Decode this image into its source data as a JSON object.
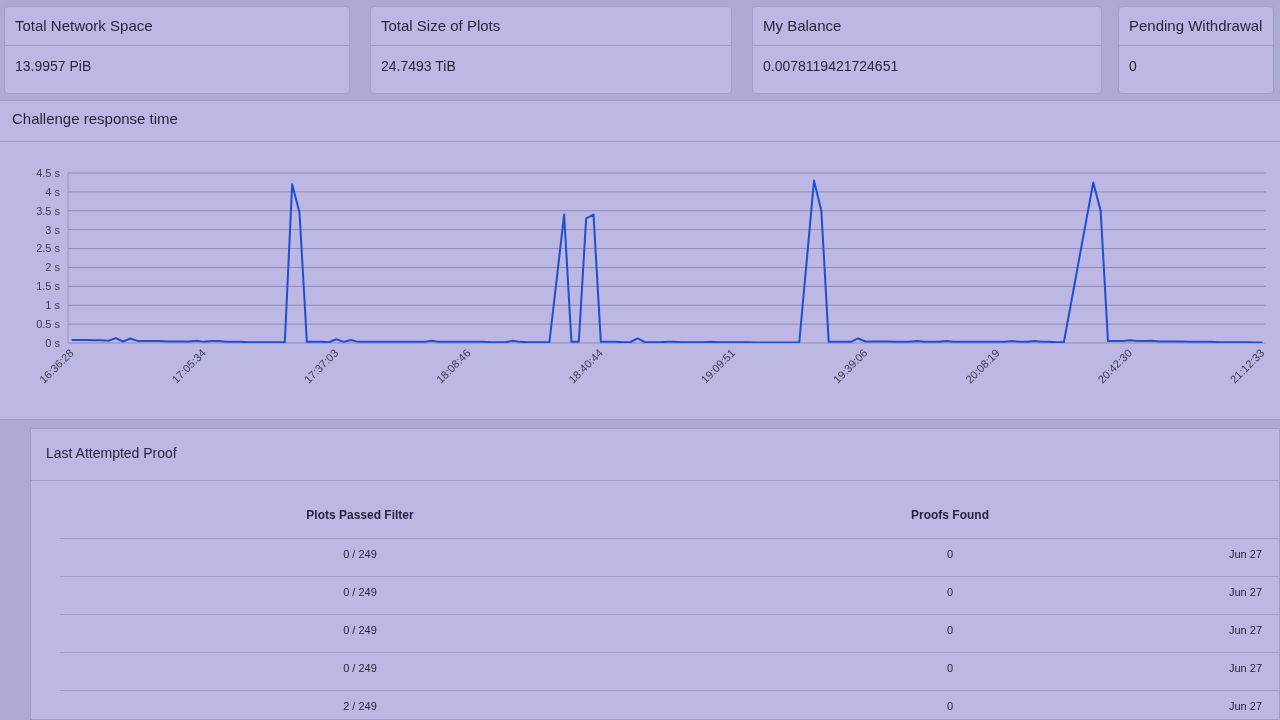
{
  "chart_data": [
    {
      "type": "other",
      "title": "Total Network Space",
      "annotations": [
        "13.9957 PiB"
      ]
    },
    {
      "type": "other",
      "title": "Total Size of Plots",
      "annotations": [
        "24.7493 TiB"
      ]
    },
    {
      "type": "other",
      "title": "My Balance",
      "annotations": [
        "0.0078119421724651"
      ]
    },
    {
      "type": "other",
      "title": "Pending Withdrawal",
      "annotations": [
        "0"
      ]
    },
    {
      "type": "line",
      "title": "Challenge response time",
      "color": "#1f4fd1",
      "grid": "y",
      "marker": "none",
      "categories": [
        "16:36:28",
        null,
        null,
        null,
        null,
        null,
        null,
        null,
        null,
        null,
        null,
        null,
        null,
        null,
        null,
        null,
        null,
        null,
        "17:05:34",
        null,
        null,
        null,
        null,
        null,
        null,
        null,
        null,
        null,
        null,
        null,
        null,
        null,
        null,
        null,
        null,
        null,
        "17:37:03",
        null,
        null,
        null,
        null,
        null,
        null,
        null,
        null,
        null,
        null,
        null,
        null,
        null,
        null,
        null,
        null,
        null,
        "18:08:46",
        null,
        null,
        null,
        null,
        null,
        null,
        null,
        null,
        null,
        null,
        null,
        null,
        null,
        null,
        null,
        null,
        null,
        "18:40:44",
        null,
        null,
        null,
        null,
        null,
        null,
        null,
        null,
        null,
        null,
        null,
        null,
        null,
        null,
        null,
        null,
        null,
        "19:09:51",
        null,
        null,
        null,
        null,
        null,
        null,
        null,
        null,
        null,
        null,
        null,
        null,
        null,
        null,
        null,
        null,
        null,
        "19:39:06",
        null,
        null,
        null,
        null,
        null,
        null,
        null,
        null,
        null,
        null,
        null,
        null,
        null,
        null,
        null,
        null,
        null,
        "20:08:19",
        null,
        null,
        null,
        null,
        null,
        null,
        null,
        null,
        null,
        null,
        null,
        null,
        null,
        null,
        null,
        null,
        null,
        "20:42:30",
        null,
        null,
        null,
        null,
        null,
        null,
        null,
        null,
        null,
        null,
        null,
        null,
        null,
        null,
        null,
        null,
        null,
        "21:12:33"
      ],
      "values": [
        0.08,
        0.08,
        0.08,
        0.07,
        0.07,
        0.06,
        0.13,
        0.04,
        0.12,
        0.05,
        0.05,
        0.05,
        0.05,
        0.04,
        0.04,
        0.04,
        0.04,
        0.06,
        0.03,
        0.05,
        0.05,
        0.03,
        0.03,
        0.03,
        0.02,
        0.02,
        0.02,
        0.02,
        0.02,
        0.02,
        4.2,
        3.45,
        0.03,
        0.03,
        0.03,
        0.02,
        0.1,
        0.03,
        0.08,
        0.03,
        0.03,
        0.03,
        0.03,
        0.03,
        0.03,
        0.03,
        0.03,
        0.03,
        0.03,
        0.06,
        0.03,
        0.03,
        0.03,
        0.03,
        0.03,
        0.03,
        0.03,
        0.02,
        0.02,
        0.02,
        0.06,
        0.03,
        0.02,
        0.02,
        0.02,
        0.02,
        1.7,
        3.4,
        0.03,
        0.03,
        3.3,
        3.4,
        0.03,
        0.03,
        0.03,
        0.02,
        0.02,
        0.12,
        0.02,
        0.02,
        0.02,
        0.03,
        0.03,
        0.02,
        0.02,
        0.02,
        0.02,
        0.03,
        0.02,
        0.02,
        0.02,
        0.02,
        0.02,
        0.01,
        0.01,
        0.01,
        0.01,
        0.01,
        0.01,
        0.02,
        2.15,
        4.3,
        3.5,
        0.03,
        0.03,
        0.03,
        0.03,
        0.12,
        0.04,
        0.04,
        0.04,
        0.04,
        0.03,
        0.03,
        0.03,
        0.05,
        0.03,
        0.03,
        0.03,
        0.05,
        0.03,
        0.03,
        0.03,
        0.03,
        0.03,
        0.03,
        0.03,
        0.03,
        0.05,
        0.03,
        0.03,
        0.05,
        0.03,
        0.03,
        0.02,
        0.02,
        1.08,
        2.14,
        3.2,
        4.25,
        3.5,
        0.05,
        0.05,
        0.05,
        0.07,
        0.05,
        0.05,
        0.06,
        0.04,
        0.04,
        0.04,
        0.04,
        0.03,
        0.03,
        0.03,
        0.03,
        0.02,
        0.02,
        0.02,
        0.02,
        0.02,
        0.01,
        0.01
      ],
      "ylim": [
        0,
        4.5
      ],
      "yticks": [
        {
          "value": 0,
          "label": "0 s"
        },
        {
          "value": 0.5,
          "label": "0.5 s"
        },
        {
          "value": 1,
          "label": "1 s"
        },
        {
          "value": 1.5,
          "label": "1.5 s"
        },
        {
          "value": 2,
          "label": "2 s"
        },
        {
          "value": 2.5,
          "label": "2.5 s"
        },
        {
          "value": 3,
          "label": "3 s"
        },
        {
          "value": 3.5,
          "label": "3.5 s"
        },
        {
          "value": 4,
          "label": "4 s"
        },
        {
          "value": 4.5,
          "label": "4.5 s"
        }
      ]
    },
    {
      "type": "other",
      "title": "Last Attempted Proof",
      "categories": [
        "Plots Passed Filter",
        "Proofs Found",
        null
      ],
      "cell_labels": [
        [
          "0 / 249",
          "0",
          "Jun 27"
        ],
        [
          "0 / 249",
          "0",
          "Jun 27"
        ],
        [
          "0 / 249",
          "0",
          "Jun 27"
        ],
        [
          "0 / 249",
          "0",
          "Jun 27"
        ],
        [
          "2 / 249",
          "0",
          "Jun 27"
        ]
      ]
    }
  ]
}
